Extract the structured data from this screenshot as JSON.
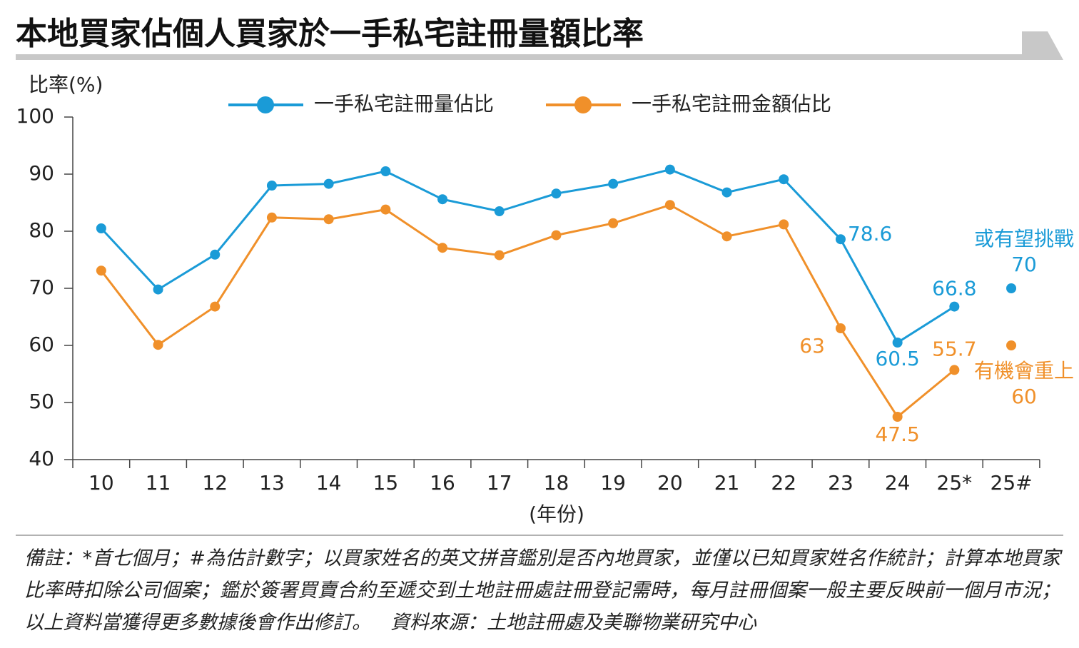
{
  "chart_data": {
    "type": "line",
    "title": "本地買家佔個人買家於一手私宅註冊量額比率",
    "y_label": "比率(%)",
    "x_label": "(年份)",
    "categories": [
      "10",
      "11",
      "12",
      "13",
      "14",
      "15",
      "16",
      "17",
      "18",
      "19",
      "20",
      "21",
      "22",
      "23",
      "24",
      "25*"
    ],
    "series": [
      {
        "name": "一手私宅註冊量佔比",
        "color": "#1a9bd7",
        "values": [
          80.5,
          69.8,
          75.9,
          88,
          88.3,
          90.5,
          85.6,
          83.5,
          86.6,
          88.3,
          90.8,
          86.8,
          89.1,
          78.6,
          60.5,
          66.8
        ],
        "value_labels": [
          null,
          null,
          null,
          null,
          null,
          null,
          null,
          null,
          null,
          null,
          null,
          null,
          null,
          "78.6",
          "60.5",
          "66.8"
        ]
      },
      {
        "name": "一手私宅註冊金額佔比",
        "color": "#f0902a",
        "values": [
          73.1,
          60.1,
          66.8,
          82.4,
          82.1,
          83.8,
          77.1,
          75.8,
          79.3,
          81.4,
          84.6,
          79.1,
          81.2,
          63,
          47.5,
          55.7
        ],
        "value_labels": [
          null,
          null,
          null,
          null,
          null,
          null,
          null,
          null,
          null,
          null,
          null,
          null,
          null,
          "63",
          "47.5",
          "55.7"
        ]
      }
    ],
    "estimate": {
      "category": "25#",
      "values": [
        70,
        60
      ],
      "labels": [
        "或有望挑戰",
        "有機會重上"
      ]
    },
    "ylim": [
      40,
      100
    ],
    "yticks": [
      40,
      50,
      60,
      70,
      80,
      90,
      100
    ],
    "note": "備註：*首七個月；#為估計數字；以買家姓名的英文拼音鑑別是否內地買家，並僅以已知買家姓名作統計；計算本地買家比率時扣除公司個案；鑑於簽署買賣合約至遞交到土地註冊處註冊登記需時，每月註冊個案一般主要反映前一個月市況；以上資料當獲得更多數據後會作出修訂。",
    "source": "資料來源：土地註冊處及美聯物業研究中心"
  }
}
